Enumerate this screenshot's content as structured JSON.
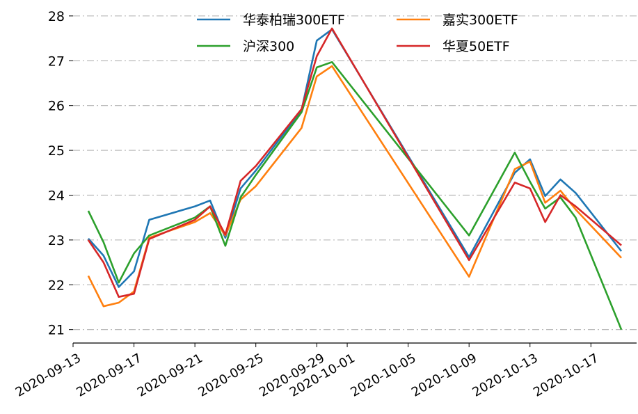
{
  "chart_data": {
    "type": "line",
    "title": "",
    "xlabel": "",
    "ylabel": "",
    "ylim": [
      20.7,
      28.2
    ],
    "xlim": [
      "2020-09-13",
      "2020-10-20"
    ],
    "yticks": [
      21,
      22,
      23,
      24,
      25,
      26,
      27,
      28
    ],
    "xticks": [
      "2020-09-13",
      "2020-09-17",
      "2020-09-21",
      "2020-09-25",
      "2020-09-29",
      "2020-10-01",
      "2020-10-05",
      "2020-10-09",
      "2020-10-13",
      "2020-10-17"
    ],
    "grid": "horizontal dash-dot",
    "legend_position": "top-center",
    "x": [
      "2020-09-14",
      "2020-09-15",
      "2020-09-16",
      "2020-09-17",
      "2020-09-18",
      "2020-09-21",
      "2020-09-22",
      "2020-09-23",
      "2020-09-24",
      "2020-09-25",
      "2020-09-28",
      "2020-09-29",
      "2020-09-30",
      "2020-10-09",
      "2020-10-12",
      "2020-10-13",
      "2020-10-14",
      "2020-10-15",
      "2020-10-16",
      "2020-10-19"
    ],
    "series": [
      {
        "name": "华泰柏瑞300ETF",
        "color": "#1f77b4",
        "values": [
          23.03,
          22.65,
          21.95,
          22.3,
          23.45,
          23.75,
          23.88,
          23.05,
          24.15,
          24.55,
          25.9,
          27.45,
          27.7,
          22.62,
          24.5,
          24.8,
          23.98,
          24.35,
          24.05,
          22.75
        ]
      },
      {
        "name": "嘉实300ETF",
        "color": "#ff7f0e",
        "values": [
          22.2,
          21.52,
          21.6,
          21.85,
          23.05,
          23.4,
          23.6,
          23.1,
          23.9,
          24.2,
          25.5,
          26.65,
          26.88,
          22.18,
          24.58,
          24.75,
          23.83,
          24.1,
          23.68,
          22.6
        ]
      },
      {
        "name": "沪深300",
        "color": "#2ca02c",
        "values": [
          23.65,
          22.95,
          22.05,
          22.7,
          23.1,
          23.5,
          23.75,
          22.87,
          23.95,
          24.45,
          25.85,
          26.85,
          26.97,
          23.1,
          24.95,
          24.3,
          23.7,
          23.95,
          23.5,
          21.0
        ]
      },
      {
        "name": "华夏50ETF",
        "color": "#d62728",
        "values": [
          23.0,
          22.5,
          21.73,
          21.8,
          23.02,
          23.45,
          23.75,
          23.12,
          24.32,
          24.65,
          25.92,
          27.1,
          27.72,
          22.55,
          24.28,
          24.15,
          23.4,
          24.0,
          23.75,
          22.88
        ]
      }
    ]
  }
}
